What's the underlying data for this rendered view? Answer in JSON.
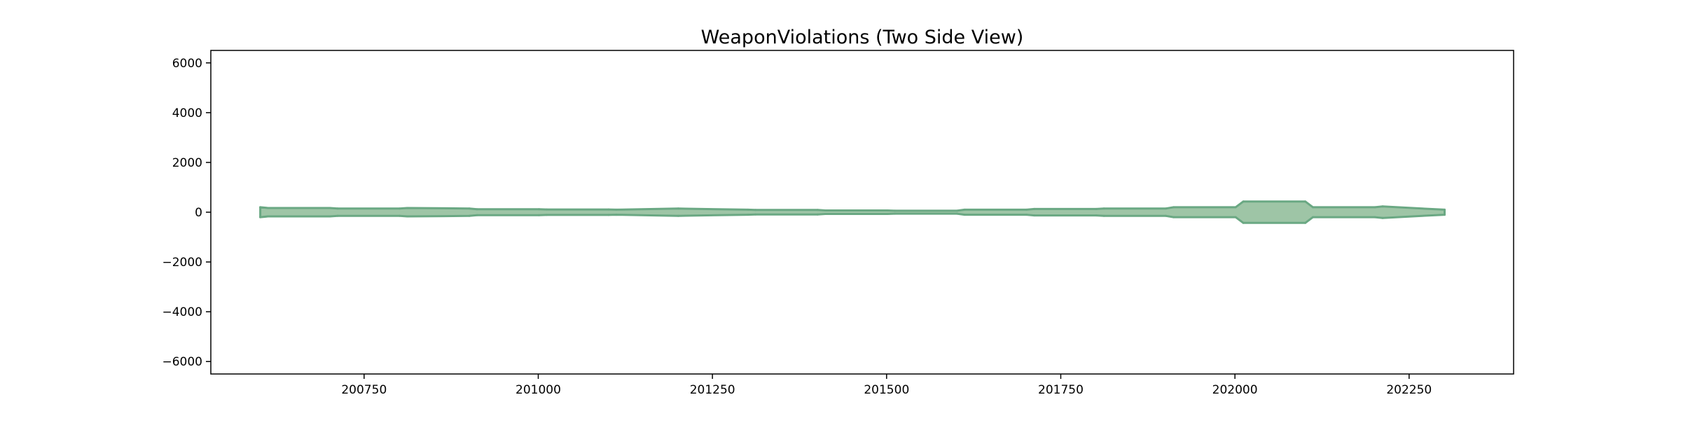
{
  "chart_data": {
    "type": "area",
    "title": "WeaponViolations (Two Side View)",
    "xlabel": "",
    "ylabel": "",
    "xlim": [
      200530,
      202400
    ],
    "ylim": [
      -6500,
      6500
    ],
    "grid": false,
    "xticks": [
      {
        "value": 200750,
        "label": "200750"
      },
      {
        "value": 201000,
        "label": "201000"
      },
      {
        "value": 201250,
        "label": "201250"
      },
      {
        "value": 201500,
        "label": "201500"
      },
      {
        "value": 201750,
        "label": "201750"
      },
      {
        "value": 202000,
        "label": "202000"
      },
      {
        "value": 202250,
        "label": "202250"
      }
    ],
    "yticks": [
      {
        "value": 6000,
        "label": "6000"
      },
      {
        "value": 4000,
        "label": "4000"
      },
      {
        "value": 2000,
        "label": "2000"
      },
      {
        "value": 0,
        "label": "0"
      },
      {
        "value": -2000,
        "label": "−2000"
      },
      {
        "value": -4000,
        "label": "−4000"
      },
      {
        "value": -6000,
        "label": "−6000"
      }
    ],
    "color": "#9ec5a6",
    "edge_color": "#6aa883",
    "series": [
      {
        "x": [
          200601,
          200612,
          200701,
          200712,
          200801,
          200812,
          200901,
          200912,
          201001,
          201012,
          201101,
          201112,
          201201,
          201212,
          201301,
          201312,
          201401,
          201412,
          201501,
          201512,
          201601,
          201612,
          201701,
          201712,
          201801,
          201812,
          201901,
          201912,
          202001,
          202012,
          202101,
          202112,
          202201,
          202212,
          202301
        ],
        "values": [
          200,
          170,
          170,
          150,
          150,
          170,
          150,
          120,
          120,
          110,
          110,
          100,
          150,
          140,
          100,
          90,
          90,
          70,
          70,
          60,
          60,
          100,
          100,
          130,
          130,
          150,
          150,
          200,
          200,
          430,
          430,
          200,
          200,
          230,
          100
        ]
      }
    ]
  }
}
